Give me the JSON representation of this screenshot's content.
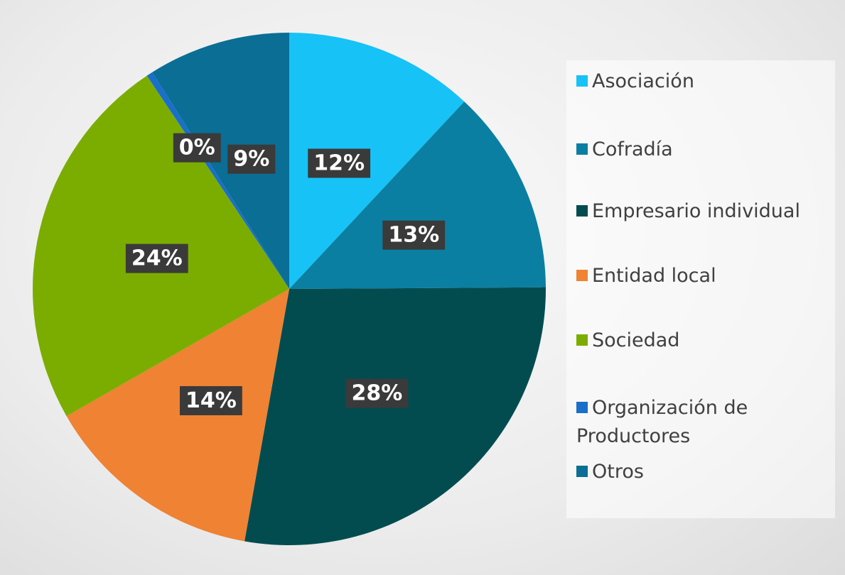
{
  "chart_data": {
    "type": "pie",
    "categories": [
      "Asociación",
      "Cofradía",
      "Empresario individual",
      "Entidad local",
      "Sociedad",
      "Organización de Productores",
      "Otros"
    ],
    "values": [
      12,
      13,
      28,
      14,
      24,
      0.4,
      9
    ],
    "value_labels": [
      "12%",
      "13%",
      "28%",
      "14%",
      "24%",
      "0%",
      "9%"
    ],
    "colors": [
      "#17c2f6",
      "#0b7fa1",
      "#024c50",
      "#ef8233",
      "#7bad00",
      "#1a6fc9",
      "#0a6e95"
    ],
    "legend": "right"
  }
}
